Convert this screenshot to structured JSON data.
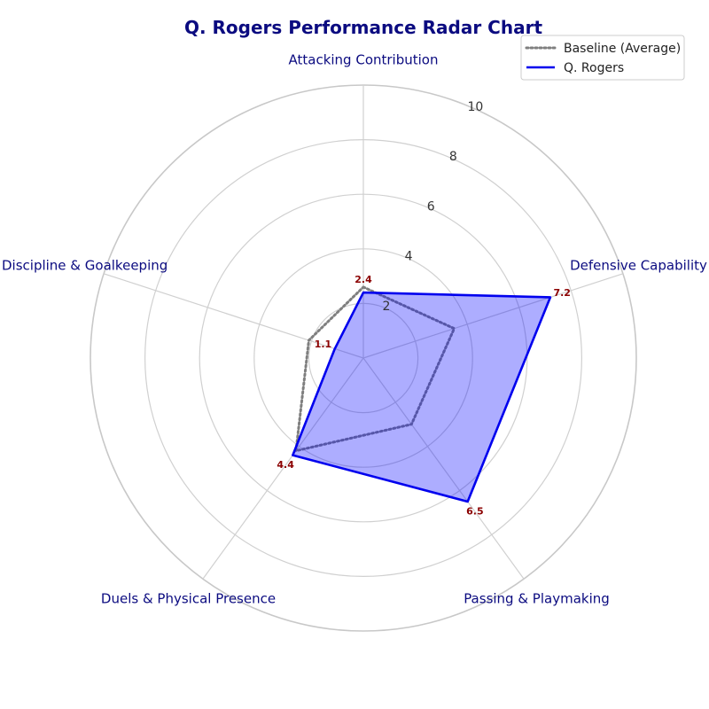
{
  "chart_data": {
    "type": "radar",
    "title": "Q. Rogers Performance Radar Chart",
    "categories": [
      "Attacking Contribution",
      "Defensive Capability",
      "Passing & Playmaking",
      "Duels & Physical Presence",
      "Discipline & Goalkeeping"
    ],
    "rlim": [
      0,
      10
    ],
    "rticks": [
      2,
      4,
      6,
      8,
      10
    ],
    "series": [
      {
        "name": "Baseline (Average)",
        "values": [
          2.6,
          3.5,
          3.0,
          4.2,
          2.1
        ],
        "color": "#7f7f7f",
        "style": "dotted"
      },
      {
        "name": "Q. Rogers",
        "values": [
          2.4,
          7.2,
          6.5,
          4.4,
          1.1
        ],
        "color": "#0000ee",
        "fill": "#0000ff",
        "style": "solid",
        "show_labels": true
      }
    ],
    "legend": "top-right",
    "grid": true
  }
}
